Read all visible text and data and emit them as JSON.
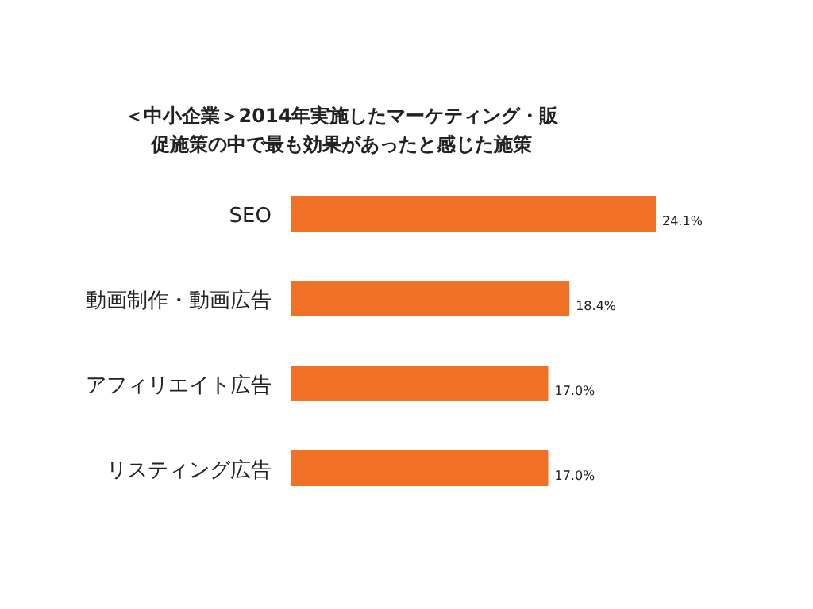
{
  "chart_data": {
    "type": "bar",
    "orientation": "horizontal",
    "title": "＜中小企業＞2014年実施したマーケティング・販促施策の中で最も効果があったと感じた施策",
    "categories": [
      "SEO",
      "動画制作・動画広告",
      "アフィリエイト広告",
      "リスティング広告"
    ],
    "values": [
      24.1,
      18.4,
      17.0,
      17.0
    ],
    "value_labels": [
      "24.1%",
      "18.4%",
      "17.0%",
      "17.0%"
    ],
    "color": "#f07125"
  }
}
